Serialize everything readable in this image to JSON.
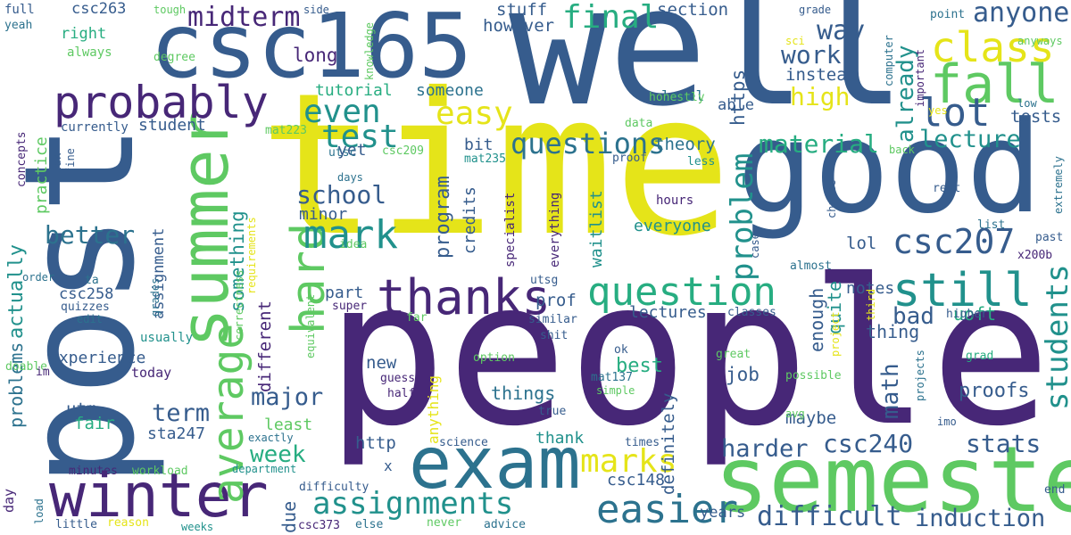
{
  "palette": {
    "navy": "#472777",
    "indigo": "#46337e",
    "slate": "#365c8d",
    "steel": "#2c728e",
    "teal": "#21918c",
    "jade": "#27ad81",
    "green": "#5ec962",
    "lime": "#addc30",
    "yellow": "#e5e419"
  },
  "words": {
    "people": "people",
    "post": "post",
    "time": "time",
    "well": "well",
    "good": "good",
    "csc165": "csc165",
    "semester": "semester",
    "summer": "summer",
    "winter": "winter",
    "exam": "exam",
    "thanks": "thanks",
    "probably": "probably",
    "question": "question",
    "fall": "fall",
    "class": "class",
    "still": "still",
    "average": "average",
    "hard": "hard",
    "mark": "mark",
    "csc207": "csc207",
    "easier": "easier",
    "lot": "lot",
    "assignments": "assignments",
    "marks": "marks",
    "final": "final",
    "easy": "easy",
    "even": "even",
    "test": "test",
    "midterm": "midterm",
    "anyone": "anyone",
    "problem": "problem",
    "students": "students",
    "questions": "questions",
    "difficult": "difficult",
    "induction": "induction",
    "material": "material",
    "lecture": "lecture",
    "csc240": "csc240",
    "harder": "harder",
    "school": "school",
    "stats": "stats",
    "week": "week",
    "term": "term",
    "major": "major",
    "better": "better",
    "math": "math",
    "high": "high",
    "way": "way",
    "work": "work",
    "already": "already",
    "section": "section",
    "stuff": "stuff",
    "however": "however",
    "long": "long",
    "tutorial": "tutorial",
    "someone": "someone",
    "https": "https",
    "tests": "tests",
    "instead": "instead",
    "theory": "theory",
    "program": "program",
    "credits": "credits",
    "waitlist": "waitlist",
    "enough": "enough",
    "quite": "quite",
    "bad": "bad",
    "uoft": "uoft",
    "proofs": "proofs",
    "lectures": "lectures",
    "notes": "notes",
    "thing": "thing",
    "maybe": "maybe",
    "job": "job",
    "best": "best",
    "things": "things",
    "thank": "thank",
    "http": "http",
    "definitely": "definitely",
    "years": "years",
    "csc148": "csc148",
    "experience": "experience",
    "new": "new",
    "fair": "fair",
    "utm": "utm",
    "sta247": "sta247",
    "least": "least",
    "due": "due",
    "something": "something",
    "different": "different",
    "part": "part",
    "prof": "prof",
    "everyone": "everyone",
    "minor": "minor",
    "bit": "bit",
    "yet": "yet",
    "lol": "lol",
    "csc263": "csc263",
    "right": "right",
    "always": "always",
    "student": "student",
    "currently": "currently",
    "assignment": "assignment",
    "practice": "practice",
    "actually": "actually",
    "problems": "problems",
    "csc258": "csc258",
    "quizzes": "quizzes",
    "edit": "edit",
    "ta": "ta",
    "usually": "usually",
    "today": "today",
    "level": "level",
    "able": "able",
    "honestly": "honestly",
    "data": "data",
    "proof": "proof",
    "less": "less",
    "hours": "hours",
    "mat223": "mat223",
    "csc209": "csc209",
    "mat235": "mat235",
    "utsc": "utsc",
    "days": "days",
    "correctness": "correctness",
    "specialist": "specialist",
    "everything": "everything",
    "requirements": "requirements",
    "equivalent": "equivalent",
    "idea": "idea",
    "utsg": "utsg",
    "super": "super",
    "far": "far",
    "similar": "similar",
    "shit": "shit",
    "classes": "classes",
    "ok": "ok",
    "mat137": "mat137",
    "simple": "simple",
    "guess": "guess",
    "half": "half",
    "true": "true",
    "option": "option",
    "great": "great",
    "possible": "possible",
    "avg": "avg",
    "anything": "anything",
    "science": "science",
    "times": "times",
    "department": "department",
    "exactly": "exactly",
    "minutes": "minutes",
    "workload": "workload",
    "difficulty": "difficulty",
    "load": "load",
    "reason": "reason",
    "weeks": "weeks",
    "little": "little",
    "csc373": "csc373",
    "else": "else",
    "never": "never",
    "advice": "advice",
    "day": "day",
    "doable": "doable",
    "im": "im",
    "order": "order",
    "idk": "idk",
    "fine": "fine",
    "concepts": "concepts",
    "full": "full",
    "yeah": "yeah",
    "tough": "tough",
    "side": "side",
    "degree": "degree",
    "knowledge": "knowledge",
    "grade": "grade",
    "point": "point",
    "anyways": "anyways",
    "sci": "sci",
    "computer": "computer",
    "important": "important",
    "low": "low",
    "yes": "yes",
    "back": "back",
    "extremely": "extremely",
    "rest": "rest",
    "case": "case",
    "chance": "chance",
    "list": "list",
    "past": "past",
    "x200b": "x200b",
    "almost": "almost",
    "third": "third",
    "project": "project",
    "higher": "higher",
    "projects": "projects",
    "imo": "imo",
    "grad": "grad",
    "end": "end",
    "grades": "grades",
    "x": "x"
  }
}
